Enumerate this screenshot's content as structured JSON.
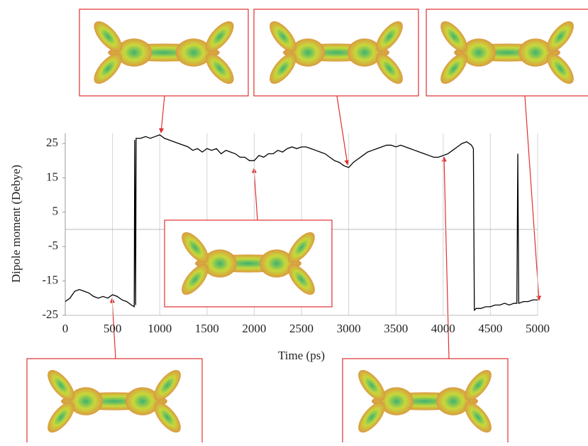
{
  "chart_data": {
    "type": "line",
    "x_label": "Time (ps)",
    "y_label": "Dipole moment (Debye)",
    "x": [
      0,
      50,
      100,
      150,
      200,
      250,
      300,
      350,
      400,
      450,
      500,
      550,
      600,
      650,
      700,
      730,
      735,
      745,
      750,
      800,
      850,
      900,
      950,
      1000,
      1050,
      1100,
      1150,
      1200,
      1250,
      1300,
      1350,
      1400,
      1450,
      1500,
      1550,
      1600,
      1650,
      1700,
      1750,
      1800,
      1850,
      1900,
      1950,
      2000,
      2050,
      2100,
      2150,
      2200,
      2250,
      2300,
      2350,
      2400,
      2450,
      2500,
      2550,
      2600,
      2650,
      2700,
      2750,
      2800,
      2850,
      2900,
      2950,
      3000,
      3050,
      3100,
      3150,
      3200,
      3250,
      3300,
      3350,
      3400,
      3450,
      3500,
      3550,
      3600,
      3650,
      3700,
      3750,
      3800,
      3850,
      3900,
      3950,
      4000,
      4050,
      4100,
      4150,
      4200,
      4250,
      4300,
      4320,
      4330,
      4350,
      4400,
      4450,
      4500,
      4550,
      4600,
      4650,
      4700,
      4750,
      4780,
      4790,
      4800,
      4850,
      4900,
      4950,
      5000
    ],
    "values": [
      -21,
      -20,
      -18,
      -17.5,
      -18,
      -18.5,
      -19.5,
      -20,
      -19.5,
      -20,
      -19,
      -19.5,
      -20.5,
      -21,
      -22,
      -22.5,
      26,
      -22,
      26.5,
      26.5,
      27,
      26.5,
      27,
      27.5,
      26.5,
      26,
      25.5,
      25,
      24.5,
      24,
      23,
      23.5,
      22.5,
      23.5,
      23,
      23.5,
      22,
      23,
      22.5,
      22,
      21,
      21,
      20,
      20,
      21.5,
      21,
      22,
      22,
      23,
      22.5,
      23.5,
      24,
      23.5,
      24,
      24,
      23.5,
      23,
      22.5,
      22,
      21,
      20,
      19.5,
      18.5,
      18,
      19.5,
      20.5,
      21.5,
      22.5,
      23,
      23.5,
      24,
      24.5,
      24.5,
      24,
      24.5,
      24,
      23.5,
      23,
      22.5,
      22,
      21.5,
      21,
      21,
      21.5,
      22,
      23,
      24,
      25,
      25.5,
      24.5,
      23.5,
      -23.5,
      -23,
      -23,
      -22.5,
      -22.5,
      -22,
      -22,
      -21.5,
      -22,
      -21.5,
      -21.5,
      22,
      -21.5,
      -21,
      -21,
      -20.5,
      -20.5
    ],
    "color": "#000000",
    "xlim": [
      0,
      5000
    ],
    "xticks": [
      0,
      500,
      1000,
      1500,
      2000,
      2500,
      3000,
      3500,
      4000,
      4500,
      5000
    ],
    "ylim": [
      -25,
      28
    ],
    "yticks": [
      -25,
      -15,
      -5,
      5,
      15,
      25
    ],
    "grid": "x"
  }
}
